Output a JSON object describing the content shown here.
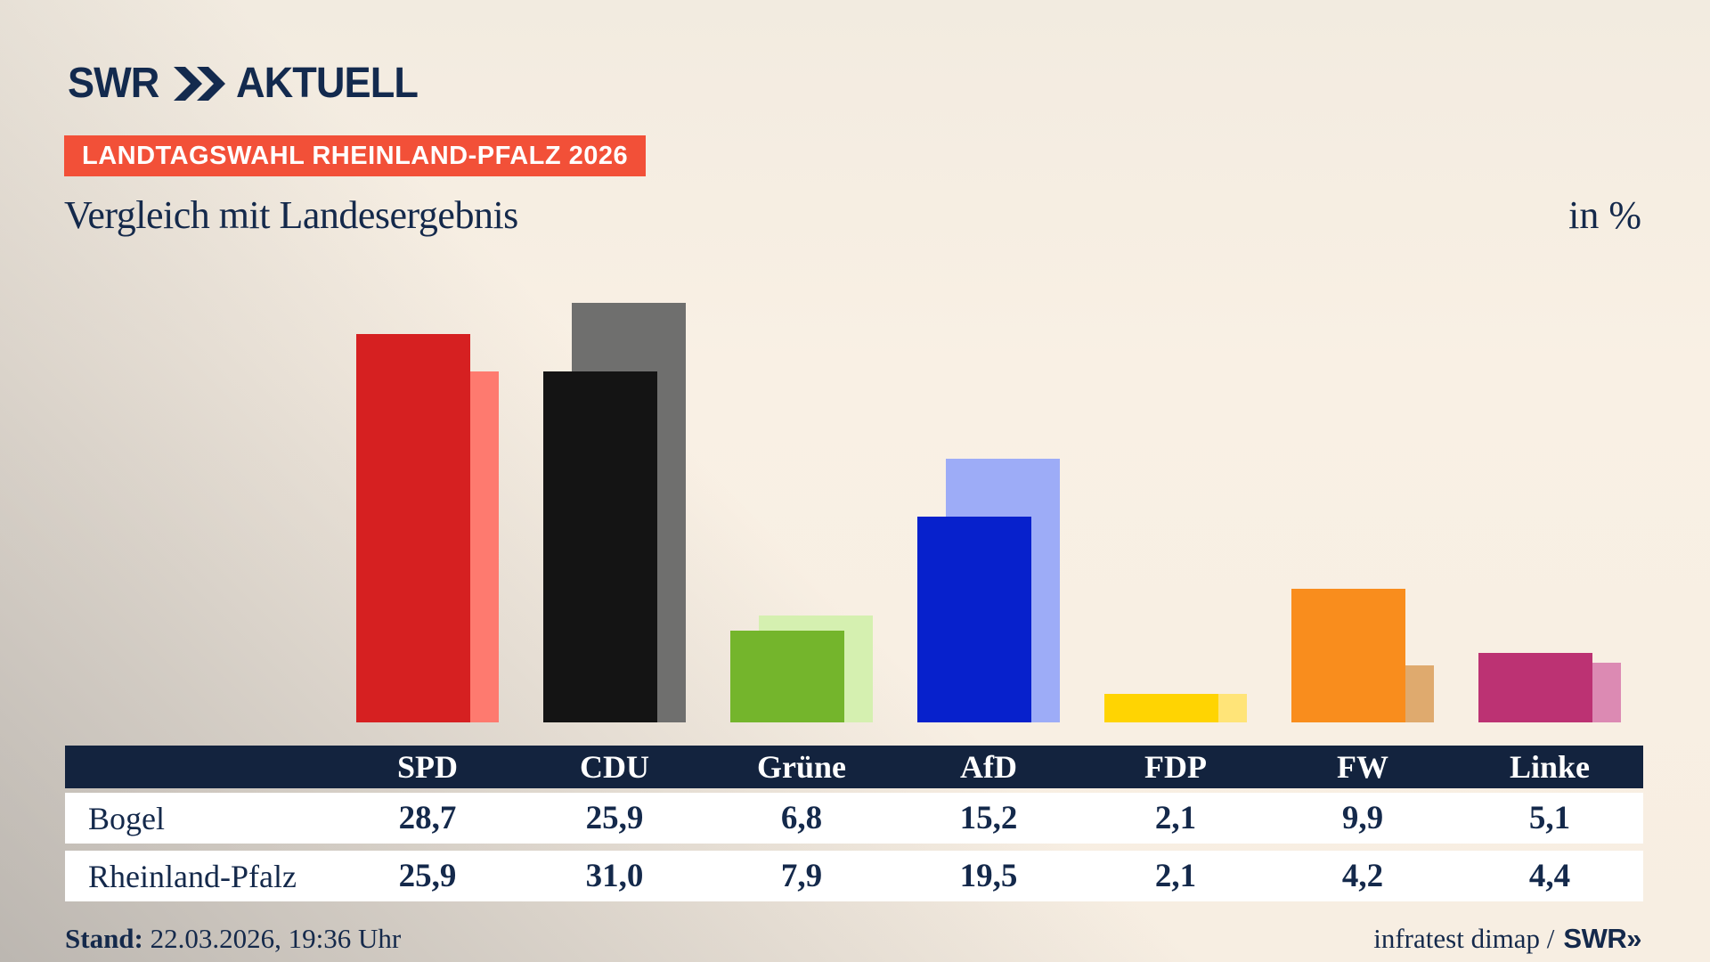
{
  "brand": {
    "swr": "SWR",
    "aktuell": "AKTUELL",
    "chevron_icon": "double-chevron-right",
    "navy": "#132a4e"
  },
  "badge": {
    "label": "LANDTAGSWAHL RHEINLAND-PFALZ 2026",
    "bg": "#f25038",
    "fg": "#ffffff"
  },
  "title": "Vergleich mit Landesergebnis",
  "unit_label": "in %",
  "chart_data": {
    "type": "bar",
    "title": "Vergleich mit Landesergebnis",
    "unit": "%",
    "categories": [
      "SPD",
      "CDU",
      "Grüne",
      "AfD",
      "FDP",
      "FW",
      "Linke"
    ],
    "series": [
      {
        "name": "Bogel",
        "values": [
          28.7,
          25.9,
          6.8,
          15.2,
          2.1,
          9.9,
          5.1
        ],
        "colors": [
          "#d62021",
          "#141414",
          "#74b52c",
          "#0721cc",
          "#ffd402",
          "#f98d1d",
          "#bc3273"
        ]
      },
      {
        "name": "Rheinland-Pfalz",
        "values": [
          25.9,
          31.0,
          7.9,
          19.5,
          2.1,
          4.2,
          4.4
        ],
        "colors": [
          "#fe7a6f",
          "#6f6f6e",
          "#d5f0b0",
          "#9dacf7",
          "#ffe478",
          "#dfaa6e",
          "#dc8ab3"
        ]
      }
    ],
    "ylim": [
      0,
      32
    ],
    "grid": false,
    "legend": "none (series named in table rows)",
    "xlabel": "",
    "ylabel": "in %"
  },
  "table": {
    "header": [
      "",
      "SPD",
      "CDU",
      "Grüne",
      "AfD",
      "FDP",
      "FW",
      "Linke"
    ],
    "header_bg": "#13233e",
    "rows": [
      {
        "label": "Bogel",
        "values": [
          "28,7",
          "25,9",
          "6,8",
          "15,2",
          "2,1",
          "9,9",
          "5,1"
        ]
      },
      {
        "label": "Rheinland-Pfalz",
        "values": [
          "25,9",
          "31,0",
          "7,9",
          "19,5",
          "2,1",
          "4,2",
          "4,4"
        ]
      }
    ]
  },
  "footer": {
    "stand_label": "Stand:",
    "stand_value": "22.03.2026, 19:36 Uhr",
    "source": "infratest dimap /",
    "source_logo": "SWR»"
  }
}
